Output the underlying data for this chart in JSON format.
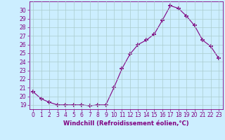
{
  "x": [
    0,
    1,
    2,
    3,
    4,
    5,
    6,
    7,
    8,
    9,
    10,
    11,
    12,
    13,
    14,
    15,
    16,
    17,
    18,
    19,
    20,
    21,
    22,
    23
  ],
  "y": [
    20.5,
    19.7,
    19.3,
    19.0,
    19.0,
    19.0,
    19.0,
    18.9,
    19.0,
    19.0,
    21.0,
    23.2,
    24.9,
    26.0,
    26.5,
    27.2,
    28.8,
    30.5,
    30.2,
    29.3,
    28.2,
    26.5,
    25.8,
    24.4
  ],
  "line_color": "#800080",
  "marker": "+",
  "marker_color": "#800080",
  "bg_color": "#cceeff",
  "grid_color": "#aacccc",
  "xlabel": "Windchill (Refroidissement éolien,°C)",
  "ylim": [
    18.5,
    31.0
  ],
  "xlim": [
    -0.5,
    23.5
  ],
  "yticks": [
    19,
    20,
    21,
    22,
    23,
    24,
    25,
    26,
    27,
    28,
    29,
    30
  ],
  "xticks": [
    0,
    1,
    2,
    3,
    4,
    5,
    6,
    7,
    8,
    9,
    10,
    11,
    12,
    13,
    14,
    15,
    16,
    17,
    18,
    19,
    20,
    21,
    22,
    23
  ],
  "tick_color": "#800080",
  "label_fontsize": 6.0,
  "tick_fontsize": 5.5
}
